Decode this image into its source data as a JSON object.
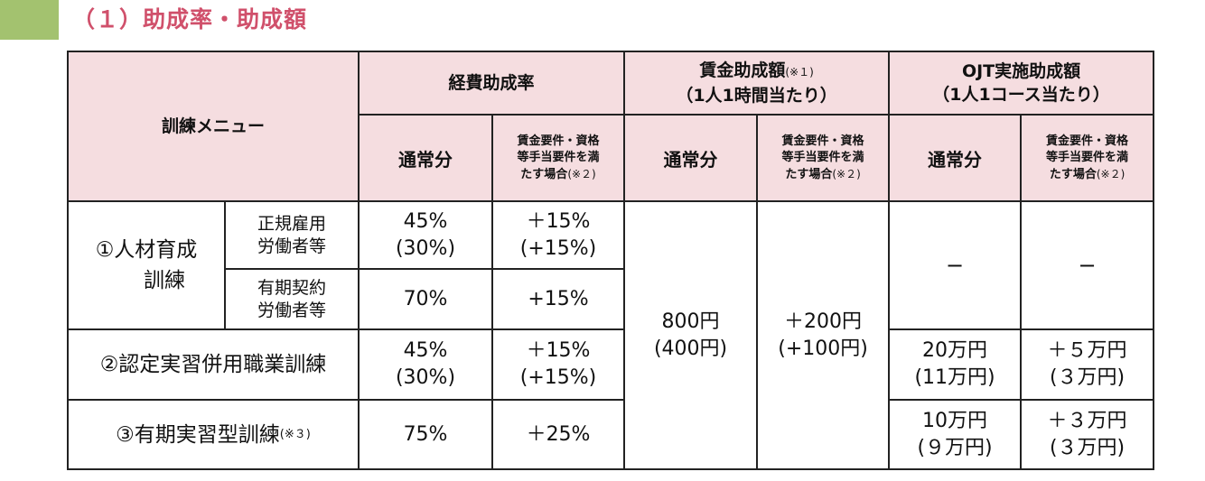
{
  "heading": "（１）助成率・助成額",
  "table": {
    "menu_header": "訓練メニュー",
    "groups": {
      "expense": {
        "title": "経費助成率"
      },
      "wage": {
        "title": "賃金助成額",
        "note": "(※１)",
        "line2": "（1人1時間当たり）"
      },
      "ojt": {
        "title": "OJT実施助成額",
        "line2": "（1人1コース当たり）"
      }
    },
    "sub": {
      "normal": "通常分",
      "extra_l1": "賃金要件・資格",
      "extra_l2": "等手当要件を満",
      "extra_l3": "たす場合",
      "extra_note": "(※２)"
    },
    "rows": {
      "r1": {
        "cat_line1": "①人材育成",
        "cat_line2": "訓練",
        "a": {
          "sub_l1": "正規雇用",
          "sub_l2": "労働者等",
          "exp_normal_l1": "45%",
          "exp_normal_l2": "(30%)",
          "exp_extra_l1": "＋15%",
          "exp_extra_l2": "(+15%)"
        },
        "b": {
          "sub_l1": "有期契約",
          "sub_l2": "労働者等",
          "exp_normal": "70%",
          "exp_extra": "+15%"
        },
        "ojt_normal": "−",
        "ojt_extra": "−"
      },
      "r2": {
        "cat": "②認定実習併用職業訓練",
        "exp_normal_l1": "45%",
        "exp_normal_l2": "(30%)",
        "exp_extra_l1": "＋15%",
        "exp_extra_l2": "(+15%)",
        "ojt_normal_l1": "20万円",
        "ojt_normal_l2": "(11万円)",
        "ojt_extra_l1": "＋５万円",
        "ojt_extra_l2": "(３万円)"
      },
      "r3": {
        "cat": "③有期実習型訓練",
        "cat_note": "(※３)",
        "exp_normal": "75%",
        "exp_extra": "＋25%",
        "ojt_normal_l1": "10万円",
        "ojt_normal_l2": "(９万円)",
        "ojt_extra_l1": "＋３万円",
        "ojt_extra_l2": "(３万円)"
      }
    },
    "wage_normal_l1": "800円",
    "wage_normal_l2": "(400円)",
    "wage_extra_l1": "＋200円",
    "wage_extra_l2": "(+100円)"
  }
}
